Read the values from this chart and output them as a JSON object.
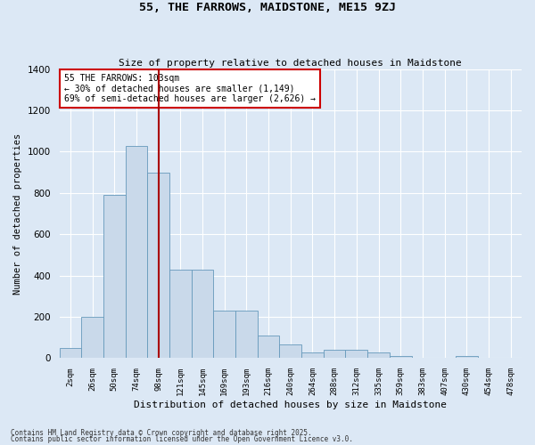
{
  "title": "55, THE FARROWS, MAIDSTONE, ME15 9ZJ",
  "subtitle": "Size of property relative to detached houses in Maidstone",
  "xlabel": "Distribution of detached houses by size in Maidstone",
  "ylabel": "Number of detached properties",
  "bar_color": "#c9d9ea",
  "bar_edge_color": "#6699bb",
  "bg_color": "#dce8f5",
  "fig_color": "#dce8f5",
  "grid_color": "#ffffff",
  "categories": [
    "2sqm",
    "26sqm",
    "50sqm",
    "74sqm",
    "98sqm",
    "121sqm",
    "145sqm",
    "169sqm",
    "193sqm",
    "216sqm",
    "240sqm",
    "264sqm",
    "288sqm",
    "312sqm",
    "335sqm",
    "359sqm",
    "383sqm",
    "407sqm",
    "430sqm",
    "454sqm",
    "478sqm"
  ],
  "values": [
    50,
    200,
    790,
    1030,
    900,
    430,
    430,
    230,
    230,
    110,
    65,
    30,
    40,
    40,
    30,
    10,
    0,
    0,
    10,
    0,
    0
  ],
  "ylim": [
    0,
    1400
  ],
  "yticks": [
    0,
    200,
    400,
    600,
    800,
    1000,
    1200,
    1400
  ],
  "vline_x": 4.0,
  "annotation_text": "55 THE FARROWS: 103sqm\n← 30% of detached houses are smaller (1,149)\n69% of semi-detached houses are larger (2,626) →",
  "annotation_box_color": "#ffffff",
  "annotation_box_edge": "#cc0000",
  "vline_color": "#aa0000",
  "footer1": "Contains HM Land Registry data © Crown copyright and database right 2025.",
  "footer2": "Contains public sector information licensed under the Open Government Licence v3.0."
}
